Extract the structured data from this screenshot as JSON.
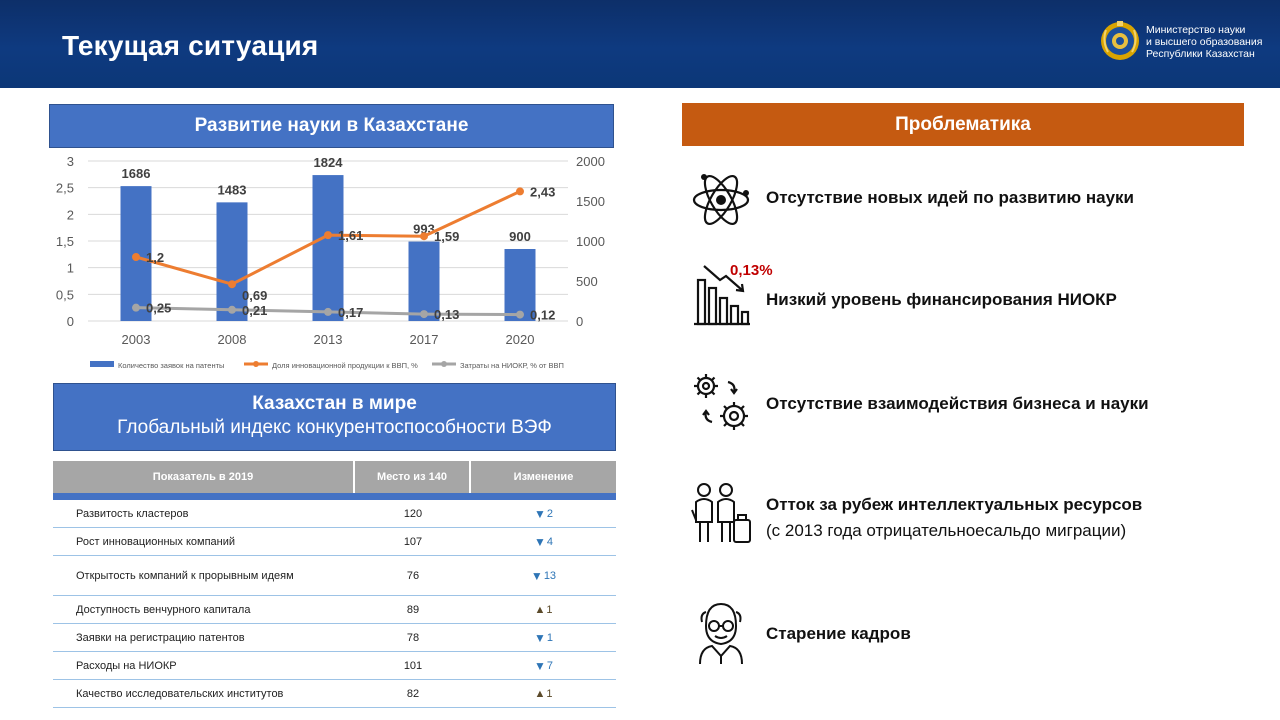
{
  "header": {
    "title": "Текущая ситуация",
    "ministry_line1": "Министерство науки",
    "ministry_line2": "и высшего образования",
    "ministry_line3": "Республики Казахстан",
    "emblem_icon": "kazakhstan-emblem-icon"
  },
  "science": {
    "banner": "Развитие науки в Казахстане"
  },
  "chart_data": {
    "type": "bar",
    "categories": [
      "2003",
      "2008",
      "2013",
      "2017",
      "2020"
    ],
    "series": [
      {
        "name": "Количество заявок на патенты",
        "type": "bar",
        "axis": "right",
        "values": [
          1686,
          1483,
          1824,
          993,
          900
        ],
        "color": "#4472c4"
      },
      {
        "name": "Доля инновационной продукции к ВВП, %",
        "type": "line",
        "axis": "left",
        "values": [
          1.2,
          0.69,
          1.61,
          1.59,
          2.43
        ],
        "labels": [
          "1,2",
          "0,69",
          "1,61",
          "1,59",
          "2,43"
        ],
        "color": "#ed7d31"
      },
      {
        "name": "Затраты на НИОКР, % от ВВП",
        "type": "line",
        "axis": "left",
        "values": [
          0.25,
          0.21,
          0.17,
          0.13,
          0.12
        ],
        "labels": [
          "0,25",
          "0,21",
          "0,17",
          "0,13",
          "0,12"
        ],
        "color": "#a5a5a5"
      }
    ],
    "left_axis": {
      "ylim": [
        0,
        3
      ],
      "ticks": [
        "0",
        "0,5",
        "1",
        "1,5",
        "2",
        "2,5",
        "3"
      ]
    },
    "right_axis": {
      "ylim": [
        0,
        2000
      ],
      "ticks": [
        "0",
        "500",
        "1000",
        "1500",
        "2000"
      ]
    },
    "legend_position": "bottom",
    "grid": true
  },
  "world": {
    "line1": "Казахстан в мире",
    "line2": "Глобальный индекс конкурентоспособности ВЭФ"
  },
  "table": {
    "headers": [
      "Показатель в 2019",
      "Место из 140",
      "Изменение"
    ],
    "rows": [
      {
        "name": "Развитость кластеров",
        "place": "120",
        "dir": "down",
        "arrow": "▼",
        "change": "2"
      },
      {
        "name": "Рост инновационных компаний",
        "place": "107",
        "dir": "down",
        "arrow": "▼",
        "change": "4"
      },
      {
        "name": "Открытость компаний к прорывным идеям",
        "place": "76",
        "dir": "down",
        "arrow": "▼",
        "change": "13"
      },
      {
        "name": "Доступность венчурного капитала",
        "place": "89",
        "dir": "up",
        "arrow": "▲",
        "change": "1"
      },
      {
        "name": "Заявки на регистрацию патентов",
        "place": "78",
        "dir": "down",
        "arrow": "▼",
        "change": "1"
      },
      {
        "name": "Расходы на НИОКР",
        "place": "101",
        "dir": "down",
        "arrow": "▼",
        "change": "7"
      },
      {
        "name": "Качество исследовательских институтов",
        "place": "82",
        "dir": "up",
        "arrow": "▲",
        "change": "1"
      }
    ]
  },
  "problems": {
    "banner": "Проблематика",
    "financing_pct": "0,13%",
    "items": [
      {
        "icon": "atom-icon",
        "text": "Отсутствие новых идей  по развитию науки"
      },
      {
        "icon": "declining-chart-icon",
        "text": "Низкий уровень финансирования НИОКР"
      },
      {
        "icon": "gears-icon",
        "text": "Отсутствие взаимодействия бизнеса и науки"
      },
      {
        "icon": "emigrating-people-icon",
        "text": "Отток за рубеж интеллектуальных ресурсов",
        "sub": "(с 2013 года отрицательноесальдо миграции)"
      },
      {
        "icon": "elderly-person-icon",
        "text": "Старение кадров"
      }
    ]
  }
}
